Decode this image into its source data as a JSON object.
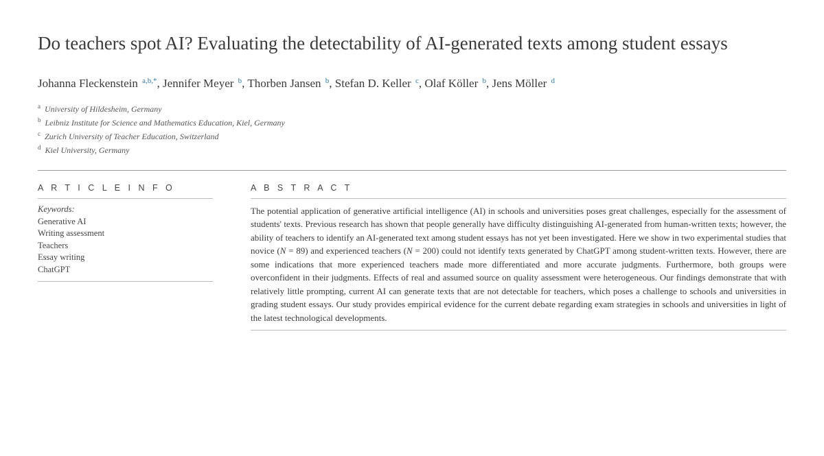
{
  "title": "Do teachers spot AI? Evaluating the detectability of AI-generated texts among student essays",
  "authors_html": "Johanna Fleckenstein <sup>a,b,*</sup>, Jennifer Meyer <sup>b</sup>, Thorben Jansen <sup>b</sup>, Stefan D. Keller <sup>c</sup>, Olaf Köller <sup>b</sup>, Jens Möller <sup>d</sup>",
  "affiliations": [
    {
      "mark": "a",
      "text": "University of Hildesheim, Germany"
    },
    {
      "mark": "b",
      "text": "Leibniz Institute for Science and Mathematics Education, Kiel, Germany"
    },
    {
      "mark": "c",
      "text": "Zurich University of Teacher Education, Switzerland"
    },
    {
      "mark": "d",
      "text": "Kiel University, Germany"
    }
  ],
  "article_info_label": "A R T I C L E  I N F O",
  "abstract_label": "A B S T R A C T",
  "keywords_label": "Keywords:",
  "keywords": [
    "Generative AI",
    "Writing assessment",
    "Teachers",
    "Essay writing",
    "ChatGPT"
  ],
  "abstract": "The potential application of generative artificial intelligence (AI) in schools and universities poses great challenges, especially for the assessment of students' texts. Previous research has shown that people generally have difficulty distinguishing AI-generated from human-written texts; however, the ability of teachers to identify an AI-generated text among student essays has not yet been investigated. Here we show in two experimental studies that novice (<em>N</em> = 89) and experienced teachers (<em>N</em> = 200) could not identify texts generated by ChatGPT among student-written texts. However, there are some indications that more experienced teachers made more differentiated and more accurate judgments. Furthermore, both groups were overconfident in their judgments. Effects of real and assumed source on quality assessment were heterogeneous. Our findings demonstrate that with relatively little prompting, current AI can generate texts that are not detectable for teachers, which poses a challenge to schools and universities in grading student essays. Our study provides empirical evidence for the current debate regarding exam strategies in schools and universities in light of the latest technological developments.",
  "style": {
    "title_fontsize": 27,
    "author_fontsize": 17,
    "affil_fontsize": 12,
    "body_fontsize": 13,
    "sup_color": "#2a7aaf",
    "text_color": "#3a3a3a",
    "divider_color": "#999999",
    "background": "#ffffff"
  }
}
